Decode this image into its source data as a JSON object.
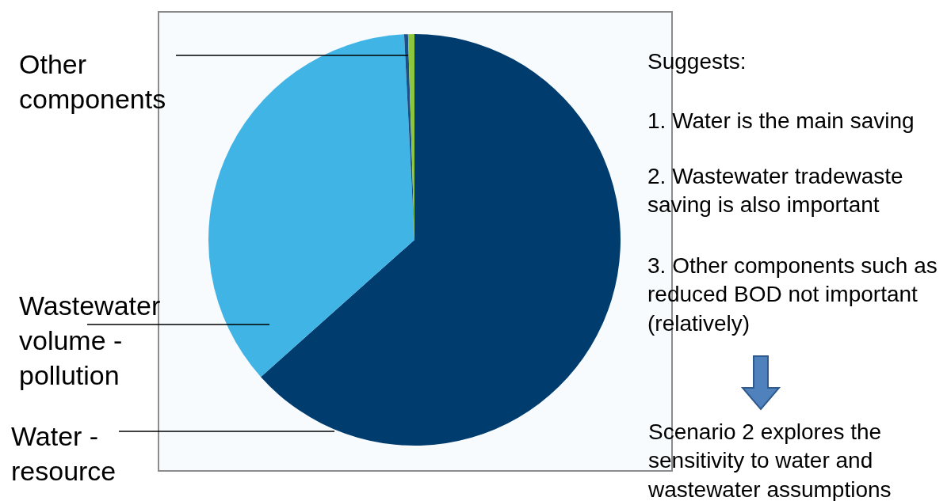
{
  "chart_data": {
    "type": "pie",
    "categories": [
      "Water - resource",
      "Wastewater volume - pollution",
      null,
      "Other components"
    ],
    "values": [
      63.4,
      35.8,
      0.3,
      0.5
    ],
    "colors": [
      "#003d6e",
      "#41b4e6",
      "#1b4f8a",
      "#8cc63f"
    ],
    "legend": false,
    "annotations": [
      "Suggests:",
      "1. Water is the main saving",
      "2. Wastewater tradewaste saving is also important",
      "3. Other components such as reduced BOD not important (relatively)",
      "Scenario 2 explores the sensitivity to water and wastewater assumptions"
    ]
  }
}
